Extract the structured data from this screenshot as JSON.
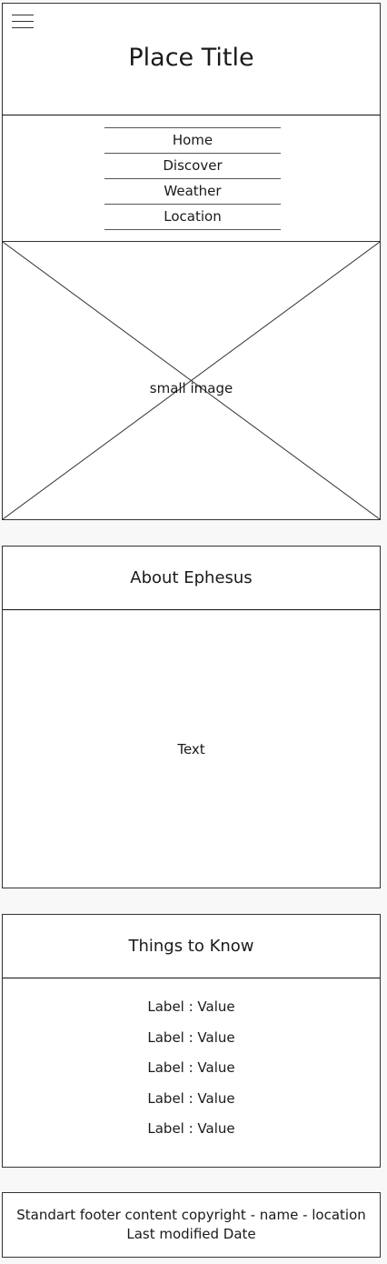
{
  "header": {
    "menu_icon": "hamburger-menu-icon",
    "title": "Place Title"
  },
  "nav": {
    "items": [
      {
        "label": "Home"
      },
      {
        "label": "Discover"
      },
      {
        "label": "Weather"
      },
      {
        "label": "Location"
      }
    ]
  },
  "hero": {
    "caption": "small image"
  },
  "about": {
    "heading": "About Ephesus",
    "body": "Text"
  },
  "things_to_know": {
    "heading": "Things to Know",
    "rows": [
      {
        "text": "Label : Value"
      },
      {
        "text": "Label : Value"
      },
      {
        "text": "Label : Value"
      },
      {
        "text": "Label : Value"
      },
      {
        "text": "Label : Value"
      }
    ]
  },
  "footer": {
    "line1": "Standart footer content copyright - name - location",
    "line2": "Last modified Date"
  }
}
